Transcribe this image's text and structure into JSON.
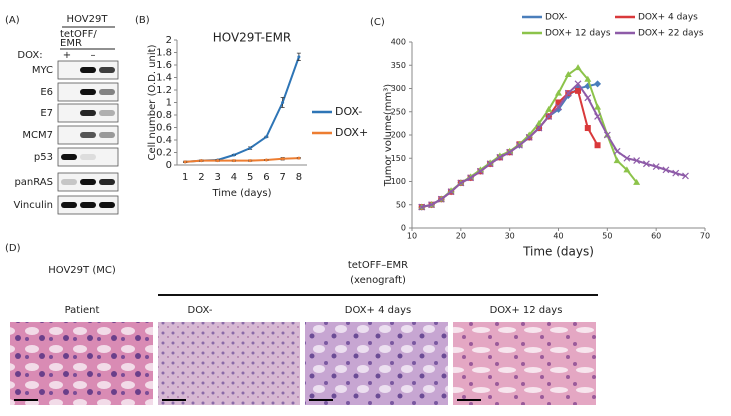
{
  "panels": {
    "a": {
      "label": "(A)",
      "cell_line": "HOV29T",
      "construct": [
        "tetOFF/",
        "EMR"
      ],
      "dox_label": "DOX:",
      "dox_states": [
        "+",
        "–"
      ],
      "proteins": [
        "MYC",
        "E6",
        "E7",
        "MCM7",
        "p53",
        "panRAS",
        "Vinculin"
      ]
    },
    "b": {
      "label": "(B)"
    },
    "c": {
      "label": "(C)"
    },
    "d": {
      "label": "(D)",
      "group1": "HOV29T (MC)",
      "group2": [
        "tetOFF–EMR",
        "(xenograft)"
      ],
      "images": [
        "Patient",
        "DOX-",
        "DOX+ 4 days",
        "DOX+ 12 days"
      ]
    }
  },
  "chart_data": [
    {
      "type": "line",
      "title": "HOV29T-EMR",
      "x_label": "Time (days)",
      "y_label": "Cell number (O.D. unit)",
      "categories": [
        "1",
        "2",
        "3",
        "4",
        "5",
        "6",
        "7",
        "8"
      ],
      "ylim": [
        0,
        2
      ],
      "yticks": [
        0,
        0.2,
        0.4,
        0.6,
        0.8,
        1,
        1.2,
        1.4,
        1.6,
        1.8,
        2
      ],
      "legend": "right",
      "series": [
        {
          "name": "DOX-",
          "color": "#2e75b6",
          "values": [
            0.05,
            0.07,
            0.08,
            0.16,
            0.27,
            0.45,
            1.0,
            1.73
          ],
          "errors": [
            0.01,
            0.01,
            0.01,
            0.01,
            0.02,
            0.01,
            0.08,
            0.06
          ]
        },
        {
          "name": "DOX+",
          "color": "#ed7d31",
          "values": [
            0.05,
            0.07,
            0.07,
            0.07,
            0.07,
            0.08,
            0.1,
            0.11
          ],
          "errors": [
            0.01,
            0.01,
            0.01,
            0.01,
            0.01,
            0.01,
            0.02,
            0.01
          ]
        }
      ]
    },
    {
      "type": "line",
      "x_label": "Time (days)",
      "y_label": "Tumor volume(mm³)",
      "xlim": [
        10,
        70
      ],
      "xticks": [
        10,
        20,
        30,
        40,
        50,
        60,
        70
      ],
      "ylim": [
        0,
        400
      ],
      "yticks": [
        0,
        50,
        100,
        150,
        200,
        250,
        300,
        350,
        400
      ],
      "legend": "top",
      "series": [
        {
          "name": "DOX-",
          "color": "#4a7ebb",
          "marker": "diamond",
          "x": [
            12,
            14,
            16,
            18,
            20,
            22,
            24,
            26,
            28,
            30,
            32,
            34,
            36,
            38,
            40,
            42,
            44,
            46,
            48
          ],
          "values": [
            45,
            50,
            62,
            78,
            97,
            108,
            122,
            138,
            152,
            163,
            178,
            195,
            215,
            240,
            255,
            285,
            300,
            305,
            310
          ]
        },
        {
          "name": "DOX+ 4 days",
          "color": "#d9393b",
          "marker": "square",
          "x": [
            12,
            14,
            16,
            18,
            20,
            22,
            24,
            26,
            28,
            30,
            32,
            34,
            36,
            38,
            40,
            42,
            44,
            46,
            48
          ],
          "values": [
            45,
            50,
            62,
            78,
            97,
            108,
            122,
            138,
            152,
            163,
            180,
            195,
            215,
            240,
            270,
            290,
            295,
            215,
            178
          ]
        },
        {
          "name": "DOX+ 12 days",
          "color": "#8cc34a",
          "marker": "triangle",
          "x": [
            12,
            14,
            16,
            18,
            20,
            22,
            24,
            26,
            28,
            30,
            32,
            34,
            36,
            38,
            40,
            42,
            44,
            46,
            48,
            50,
            52,
            54,
            56
          ],
          "values": [
            45,
            50,
            62,
            80,
            97,
            110,
            125,
            140,
            155,
            165,
            180,
            200,
            225,
            255,
            290,
            330,
            345,
            320,
            260,
            200,
            145,
            125,
            98
          ]
        },
        {
          "name": "DOX+ 22 days",
          "color": "#8e5ba8",
          "marker": "cross",
          "x": [
            12,
            14,
            16,
            18,
            20,
            22,
            24,
            26,
            28,
            30,
            32,
            34,
            36,
            38,
            40,
            42,
            44,
            46,
            48,
            50,
            52,
            54,
            56,
            58,
            60,
            62,
            64,
            66
          ],
          "values": [
            45,
            50,
            62,
            78,
            97,
            108,
            122,
            138,
            152,
            163,
            178,
            195,
            215,
            240,
            260,
            290,
            310,
            280,
            240,
            200,
            165,
            150,
            145,
            138,
            132,
            125,
            118,
            112
          ]
        }
      ]
    }
  ]
}
